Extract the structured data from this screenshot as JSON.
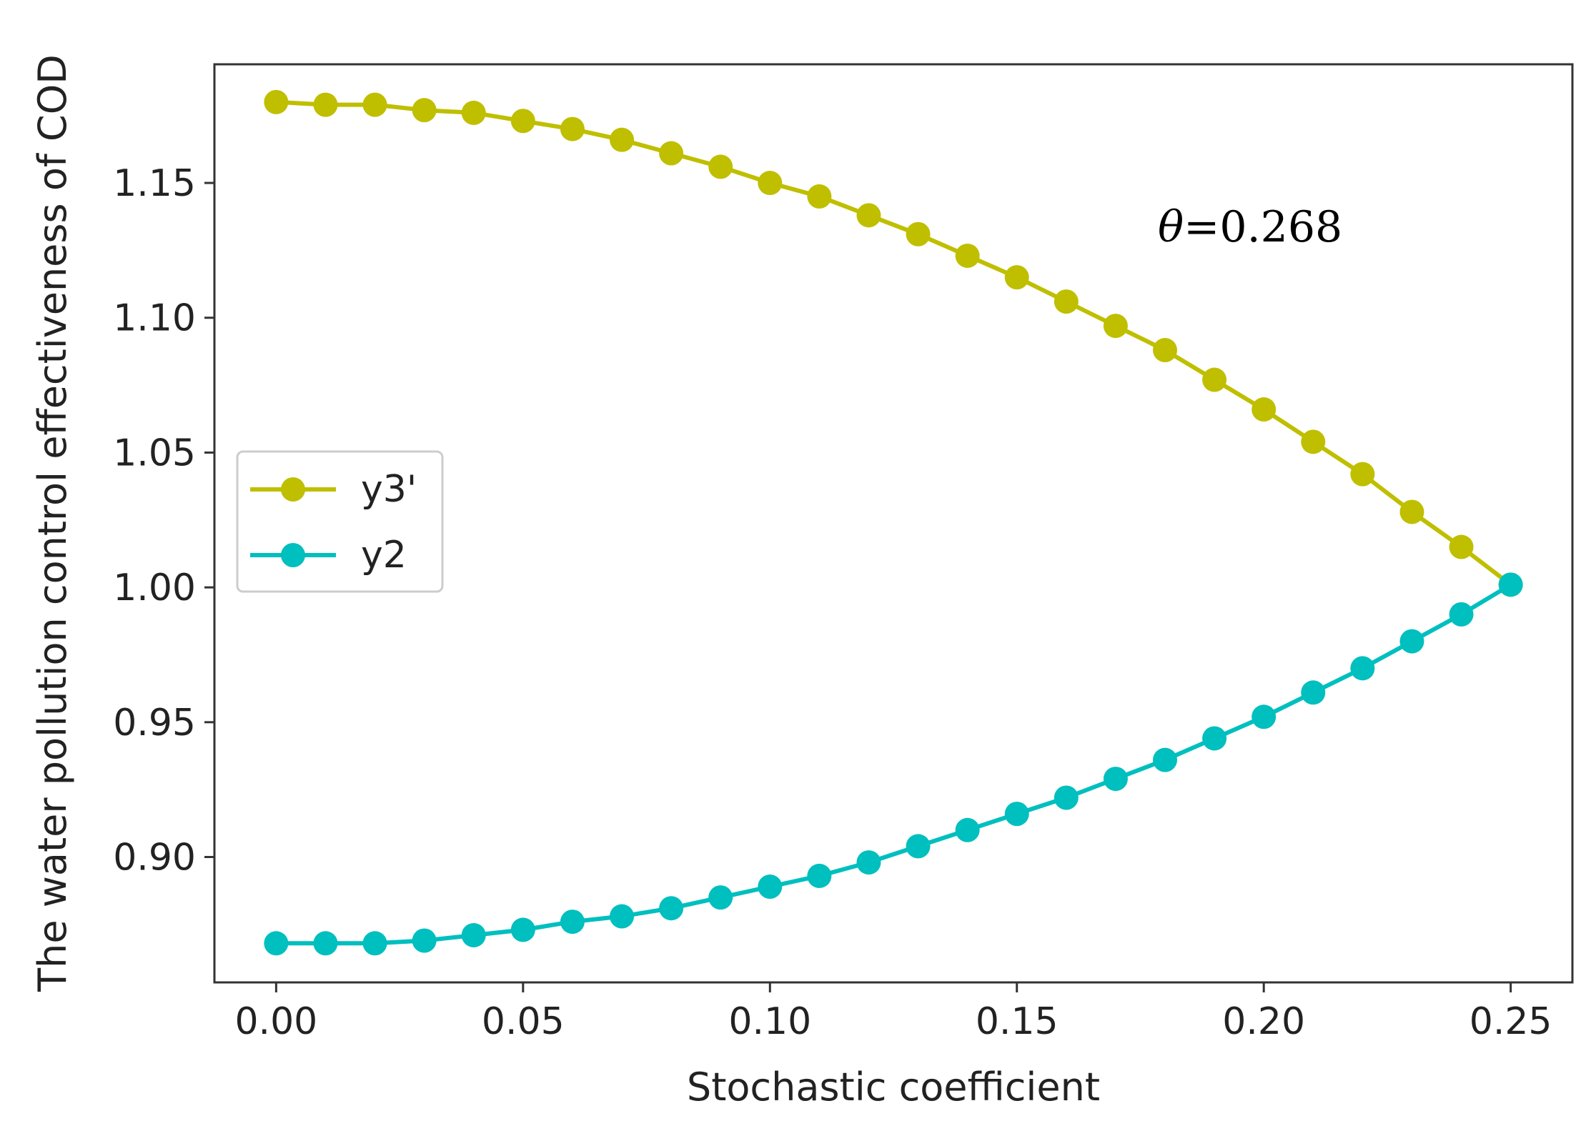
{
  "chart_data": {
    "type": "line",
    "xlabel": "Stochastic coefficient",
    "ylabel": "The water pollution control effectiveness of COD",
    "annotation": {
      "symbol": "θ",
      "text": "=0.268"
    },
    "xlim": [
      -0.0125,
      0.2625
    ],
    "ylim": [
      0.8535,
      1.194
    ],
    "x_ticks": [
      {
        "value": 0.0,
        "label": "0.00"
      },
      {
        "value": 0.05,
        "label": "0.05"
      },
      {
        "value": 0.1,
        "label": "0.10"
      },
      {
        "value": 0.15,
        "label": "0.15"
      },
      {
        "value": 0.2,
        "label": "0.20"
      },
      {
        "value": 0.25,
        "label": "0.25"
      }
    ],
    "y_ticks": [
      {
        "value": 0.9,
        "label": "0.90"
      },
      {
        "value": 0.95,
        "label": "0.95"
      },
      {
        "value": 1.0,
        "label": "1.00"
      },
      {
        "value": 1.05,
        "label": "1.05"
      },
      {
        "value": 1.1,
        "label": "1.10"
      },
      {
        "value": 1.15,
        "label": "1.15"
      }
    ],
    "grid": false,
    "legend_position": "center-left",
    "x": [
      0.0,
      0.01,
      0.02,
      0.03,
      0.04,
      0.05,
      0.06,
      0.07,
      0.08,
      0.09,
      0.1,
      0.11,
      0.12,
      0.13,
      0.14,
      0.15,
      0.16,
      0.17,
      0.18,
      0.19,
      0.2,
      0.21,
      0.22,
      0.23,
      0.24,
      0.25
    ],
    "series": [
      {
        "name": "y3'",
        "color": "#bfbf00",
        "values": [
          1.18,
          1.179,
          1.179,
          1.177,
          1.176,
          1.173,
          1.17,
          1.166,
          1.161,
          1.156,
          1.15,
          1.145,
          1.138,
          1.131,
          1.123,
          1.115,
          1.106,
          1.097,
          1.088,
          1.077,
          1.066,
          1.054,
          1.042,
          1.028,
          1.015,
          1.001
        ]
      },
      {
        "name": "y2",
        "color": "#00bfbf",
        "values": [
          0.868,
          0.868,
          0.868,
          0.869,
          0.871,
          0.873,
          0.876,
          0.878,
          0.881,
          0.885,
          0.889,
          0.893,
          0.898,
          0.904,
          0.91,
          0.916,
          0.922,
          0.929,
          0.936,
          0.944,
          0.952,
          0.961,
          0.97,
          0.98,
          0.99,
          1.001
        ]
      }
    ]
  }
}
